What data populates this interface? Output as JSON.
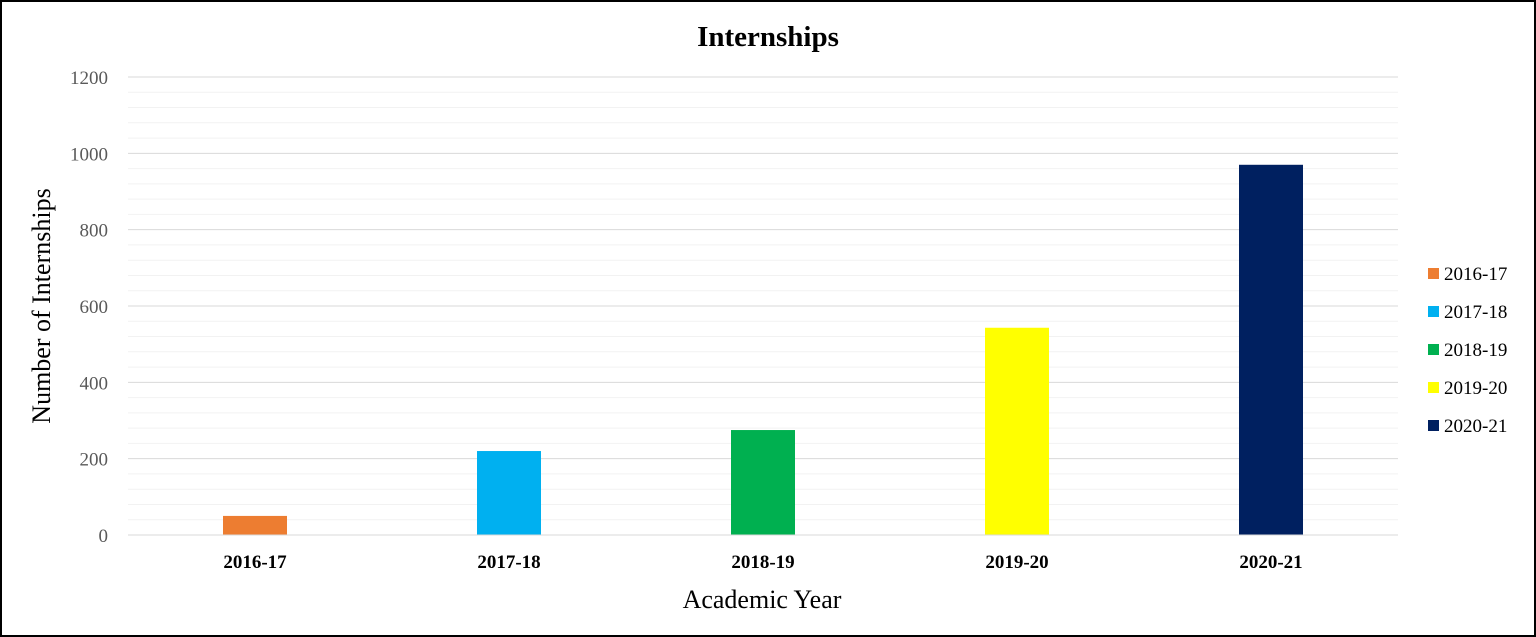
{
  "chart_data": {
    "type": "bar",
    "title": "Internships",
    "xlabel": "Academic Year",
    "ylabel": "Number of Internships",
    "categories": [
      "2016-17",
      "2017-18",
      "2018-19",
      "2019-20",
      "2020-21"
    ],
    "values": [
      50,
      220,
      275,
      543,
      970
    ],
    "colors": [
      "#ED7D31",
      "#00B0F0",
      "#00B050",
      "#FFFF00",
      "#002060"
    ],
    "ylim": [
      0,
      1200
    ],
    "yticks": [
      "0",
      "200",
      "400",
      "600",
      "800",
      "1000",
      "1200"
    ],
    "major_grid": true,
    "minor_grid": true,
    "legend_position": "right",
    "legend": [
      "2016-17",
      "2017-18",
      "2018-19",
      "2019-20",
      "2020-21"
    ]
  }
}
